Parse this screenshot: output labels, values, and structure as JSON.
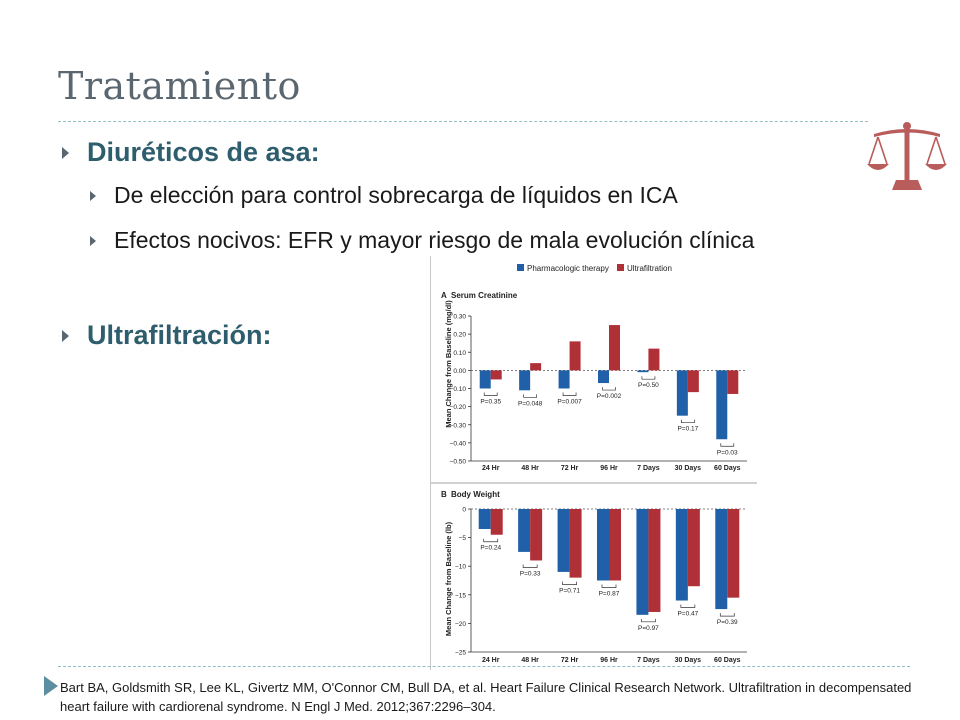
{
  "slide": {
    "title": "Tratamiento",
    "bullets": [
      {
        "text": "Diuréticos de asa:",
        "level": 1
      },
      {
        "text": "De elección para control sobrecarga de líquidos en ICA",
        "level": 2
      },
      {
        "text": "Efectos nocivos: EFR y mayor riesgo de mala evolución clínica",
        "level": 2
      },
      {
        "text": "Ultrafiltración:",
        "level": 1
      }
    ],
    "reference": "Bart BA, Goldsmith SR, Lee KL, Givertz MM, O'Connor CM, Bull DA, et al. Heart Failure Clinical Research Network. Ultrafiltration in decompensated heart failure with cardiorenal syndrome. N Engl J Med. 2012;367:2296–304.",
    "icon": "scales-of-justice-icon",
    "colors": {
      "title": "#5b6770",
      "heading": "#2e5e6e",
      "accent": "#b85c5c",
      "rule": "#8fc0c8"
    }
  },
  "chart_data": [
    {
      "type": "bar",
      "panel": "A",
      "title": "Serum Creatinine",
      "ylabel": "Mean Change from Baseline (mg/dl)",
      "ylim": [
        -0.5,
        0.3
      ],
      "yticks": [
        "0.30",
        "0.20",
        "0.10",
        "0.00",
        "−0.10",
        "−0.20",
        "−0.30",
        "−0.40",
        "−0.50"
      ],
      "categories": [
        "24 Hr",
        "48 Hr",
        "72 Hr",
        "96 Hr",
        "7 Days",
        "30 Days",
        "60 Days"
      ],
      "series": [
        {
          "name": "Pharmacologic therapy",
          "color": "#2060a8",
          "values": [
            -0.1,
            -0.11,
            -0.1,
            -0.07,
            -0.01,
            -0.25,
            -0.38
          ]
        },
        {
          "name": "Ultrafiltration",
          "color": "#b03038",
          "values": [
            -0.05,
            0.04,
            0.16,
            0.25,
            0.12,
            -0.12,
            -0.13
          ]
        }
      ],
      "pvalues": [
        "P=0.35",
        "P=0.048",
        "P=0.007",
        "P=0.002",
        "P=0.50",
        "P=0.17",
        "P=0.03"
      ],
      "legend": "top"
    },
    {
      "type": "bar",
      "panel": "B",
      "title": "Body Weight",
      "ylabel": "Mean Change from Baseline (lb)",
      "ylim": [
        -25,
        0
      ],
      "yticks": [
        "0",
        "−5",
        "−10",
        "−15",
        "−20",
        "−25"
      ],
      "categories": [
        "24 Hr",
        "48 Hr",
        "72 Hr",
        "96 Hr",
        "7 Days",
        "30 Days",
        "60 Days"
      ],
      "series": [
        {
          "name": "Pharmacologic therapy",
          "color": "#2060a8",
          "values": [
            -3.5,
            -7.5,
            -11,
            -12.5,
            -18.5,
            -16,
            -17.5
          ]
        },
        {
          "name": "Ultrafiltration",
          "color": "#b03038",
          "values": [
            -4.5,
            -9,
            -12,
            -12.5,
            -18,
            -13.5,
            -15.5
          ]
        }
      ],
      "pvalues": [
        "P=0.24",
        "P=0.33",
        "P=0.71",
        "P=0.87",
        "P=0.97",
        "P=0.47",
        "P=0.39"
      ]
    }
  ]
}
